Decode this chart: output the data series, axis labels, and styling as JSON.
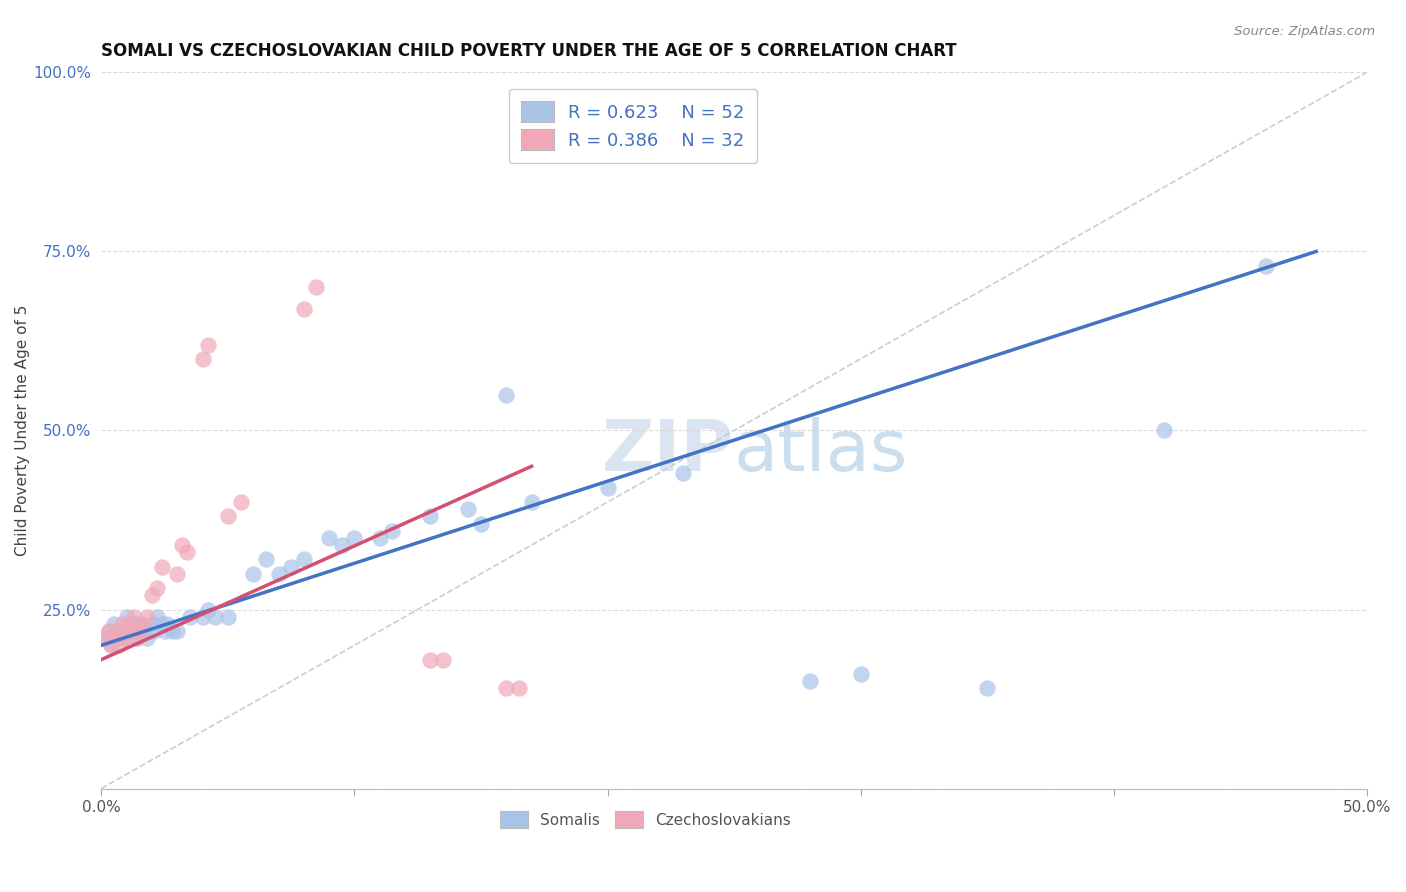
{
  "title": "SOMALI VS CZECHOSLOVAKIAN CHILD POVERTY UNDER THE AGE OF 5 CORRELATION CHART",
  "source": "Source: ZipAtlas.com",
  "ylabel": "Child Poverty Under the Age of 5",
  "xlim": [
    0.0,
    0.5
  ],
  "ylim": [
    0.0,
    1.0
  ],
  "watermark": "ZIPatlas",
  "somali_R": 0.623,
  "somali_N": 52,
  "czech_R": 0.386,
  "czech_N": 32,
  "somali_color": "#aac4e8",
  "czech_color": "#f0a8b8",
  "somali_line_color": "#4472c4",
  "czech_line_color": "#d45070",
  "diagonal_color": "#c8c8c8",
  "background_color": "#ffffff",
  "grid_color": "#d8d8d8",
  "somali_x": [
    0.002,
    0.003,
    0.004,
    0.005,
    0.006,
    0.007,
    0.008,
    0.009,
    0.01,
    0.011,
    0.012,
    0.013,
    0.014,
    0.015,
    0.016,
    0.017,
    0.018,
    0.02,
    0.021,
    0.022,
    0.024,
    0.025,
    0.026,
    0.028,
    0.03,
    0.035,
    0.04,
    0.042,
    0.045,
    0.05,
    0.06,
    0.065,
    0.07,
    0.075,
    0.08,
    0.09,
    0.095,
    0.1,
    0.11,
    0.115,
    0.13,
    0.145,
    0.15,
    0.16,
    0.17,
    0.2,
    0.23,
    0.28,
    0.3,
    0.35,
    0.42,
    0.46
  ],
  "somali_y": [
    0.21,
    0.22,
    0.2,
    0.23,
    0.21,
    0.22,
    0.22,
    0.21,
    0.24,
    0.22,
    0.23,
    0.22,
    0.21,
    0.23,
    0.22,
    0.22,
    0.21,
    0.23,
    0.22,
    0.24,
    0.23,
    0.22,
    0.23,
    0.22,
    0.22,
    0.24,
    0.24,
    0.25,
    0.24,
    0.24,
    0.3,
    0.32,
    0.3,
    0.31,
    0.32,
    0.35,
    0.34,
    0.35,
    0.35,
    0.36,
    0.38,
    0.39,
    0.37,
    0.55,
    0.4,
    0.42,
    0.44,
    0.15,
    0.16,
    0.14,
    0.5,
    0.73
  ],
  "czech_x": [
    0.002,
    0.003,
    0.004,
    0.005,
    0.006,
    0.007,
    0.008,
    0.009,
    0.01,
    0.011,
    0.012,
    0.013,
    0.014,
    0.015,
    0.016,
    0.018,
    0.02,
    0.022,
    0.024,
    0.03,
    0.032,
    0.034,
    0.04,
    0.042,
    0.05,
    0.055,
    0.08,
    0.085,
    0.13,
    0.135,
    0.16,
    0.165
  ],
  "czech_y": [
    0.21,
    0.22,
    0.2,
    0.21,
    0.22,
    0.2,
    0.23,
    0.21,
    0.22,
    0.23,
    0.22,
    0.24,
    0.21,
    0.22,
    0.23,
    0.24,
    0.27,
    0.28,
    0.31,
    0.3,
    0.34,
    0.33,
    0.6,
    0.62,
    0.38,
    0.4,
    0.67,
    0.7,
    0.18,
    0.18,
    0.14,
    0.14
  ],
  "somali_line_x": [
    0.0,
    0.48
  ],
  "somali_line_y": [
    0.2,
    0.75
  ],
  "czech_line_x": [
    0.0,
    0.17
  ],
  "czech_line_y": [
    0.18,
    0.45
  ]
}
